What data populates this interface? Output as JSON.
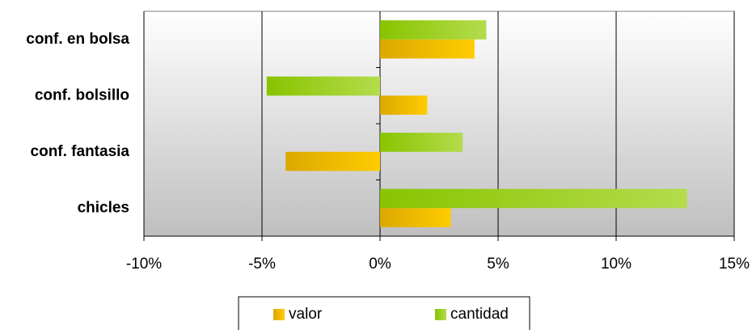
{
  "chart_data": {
    "type": "hbar",
    "categories": [
      "conf. en bolsa",
      "conf. bolsillo",
      "conf. fantasia",
      "chicles"
    ],
    "series": [
      {
        "name": "valor",
        "color": "#f5c000",
        "values": [
          4,
          2,
          -4,
          3
        ]
      },
      {
        "name": "cantidad",
        "color": "#9fd22a",
        "values": [
          4.5,
          -4.8,
          3.5,
          13
        ]
      }
    ],
    "xlim": [
      -10,
      15
    ],
    "xticks": [
      {
        "value": -10,
        "label": "-10%"
      },
      {
        "value": -5,
        "label": "-5%"
      },
      {
        "value": 0,
        "label": "0%"
      },
      {
        "value": 5,
        "label": "5%"
      },
      {
        "value": 10,
        "label": "10%"
      },
      {
        "value": 15,
        "label": "15%"
      }
    ],
    "grid": true,
    "legend": "bottom"
  }
}
